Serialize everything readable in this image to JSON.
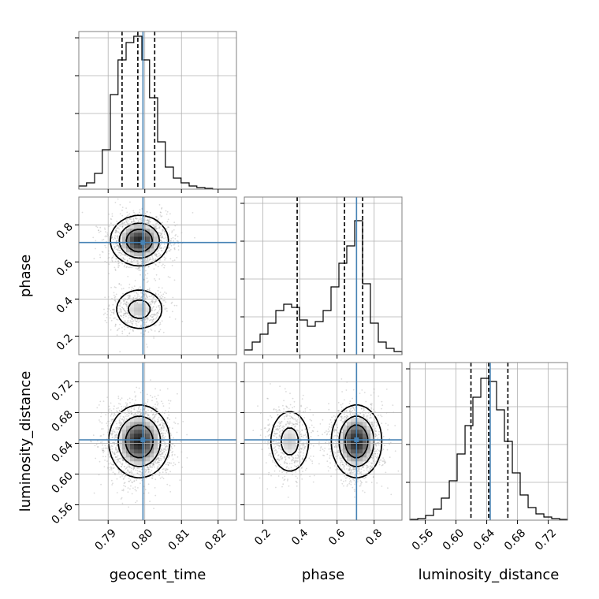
{
  "chart_data": {
    "type": "corner",
    "parameters": [
      "geocent_time",
      "phase",
      "luminosity_distance"
    ],
    "ranges": {
      "geocent_time": [
        0.782,
        0.825
      ],
      "phase": [
        0.1,
        0.95
      ],
      "luminosity_distance": [
        0.54,
        0.745
      ]
    },
    "ticks": {
      "geocent_time": [
        0.79,
        0.8,
        0.81,
        0.82
      ],
      "phase": [
        0.2,
        0.4,
        0.6,
        0.8
      ],
      "luminosity_distance": [
        0.56,
        0.6,
        0.64,
        0.68,
        0.72
      ]
    },
    "tick_labels": {
      "geocent_time": [
        "0.79",
        "0.80",
        "0.81",
        "0.82"
      ],
      "phase": [
        "0.2",
        "0.4",
        "0.6",
        "0.8"
      ],
      "luminosity_distance": [
        "0.56",
        "0.60",
        "0.64",
        "0.68",
        "0.72"
      ]
    },
    "truths": {
      "geocent_time": 0.7995,
      "phase": 0.705,
      "luminosity_distance": 0.6445
    },
    "quantiles": {
      "geocent_time": [
        0.7938,
        0.7981,
        0.8027
      ],
      "phase": [
        0.385,
        0.64,
        0.738
      ],
      "luminosity_distance": [
        0.6195,
        0.6425,
        0.6675
      ]
    },
    "histograms": {
      "geocent_time": {
        "edges": [
          0.782,
          0.7841,
          0.7863,
          0.7884,
          0.7906,
          0.7927,
          0.7949,
          0.797,
          0.7992,
          0.8013,
          0.8035,
          0.8056,
          0.8078,
          0.8099,
          0.8121,
          0.8142,
          0.8164,
          0.8185,
          0.8207,
          0.8228,
          0.825
        ],
        "counts": [
          0.02,
          0.04,
          0.1,
          0.25,
          0.6,
          0.82,
          0.93,
          0.97,
          0.82,
          0.58,
          0.3,
          0.14,
          0.07,
          0.04,
          0.02,
          0.01,
          0.005,
          0,
          0,
          0
        ]
      },
      "phase": {
        "edges": [
          0.1,
          0.1425,
          0.185,
          0.2275,
          0.27,
          0.3125,
          0.355,
          0.3975,
          0.44,
          0.4825,
          0.525,
          0.5675,
          0.61,
          0.6525,
          0.695,
          0.7375,
          0.78,
          0.8225,
          0.865,
          0.9075,
          0.95
        ],
        "counts": [
          0.03,
          0.08,
          0.13,
          0.2,
          0.28,
          0.32,
          0.3,
          0.22,
          0.18,
          0.21,
          0.28,
          0.43,
          0.58,
          0.69,
          0.85,
          0.45,
          0.2,
          0.08,
          0.04,
          0.02
        ]
      },
      "luminosity_distance": {
        "edges": [
          0.54,
          0.5503,
          0.5605,
          0.5708,
          0.581,
          0.5913,
          0.6015,
          0.6118,
          0.622,
          0.6323,
          0.6425,
          0.6528,
          0.663,
          0.6733,
          0.6835,
          0.6938,
          0.704,
          0.7143,
          0.7245,
          0.7348,
          0.745
        ],
        "counts": [
          0.005,
          0.01,
          0.03,
          0.07,
          0.14,
          0.25,
          0.42,
          0.6,
          0.78,
          0.9,
          0.88,
          0.7,
          0.5,
          0.3,
          0.16,
          0.08,
          0.04,
          0.02,
          0.01,
          0.005
        ]
      }
    },
    "density_2d": [
      {
        "x": "geocent_time",
        "y": "phase",
        "components": [
          {
            "weight": 0.72,
            "mean": [
              0.7985,
              0.715
            ],
            "sd": [
              0.0035,
              0.06
            ]
          },
          {
            "weight": 0.28,
            "mean": [
              0.7985,
              0.345
            ],
            "sd": [
              0.0033,
              0.055
            ]
          }
        ]
      },
      {
        "x": "geocent_time",
        "y": "luminosity_distance",
        "components": [
          {
            "weight": 1.0,
            "mean": [
              0.7985,
              0.6425
            ],
            "sd": [
              0.0037,
              0.021
            ]
          }
        ]
      },
      {
        "x": "phase",
        "y": "luminosity_distance",
        "components": [
          {
            "weight": 0.72,
            "mean": [
              0.705,
              0.6425
            ],
            "sd": [
              0.06,
              0.021
            ]
          },
          {
            "weight": 0.28,
            "mean": [
              0.345,
              0.6425
            ],
            "sd": [
              0.055,
              0.021
            ]
          }
        ]
      }
    ],
    "grid": true,
    "truth_color": "#4682b4",
    "quantile_line_style": "dashed",
    "line_color": "#000000",
    "scatter_color": "#999999"
  }
}
